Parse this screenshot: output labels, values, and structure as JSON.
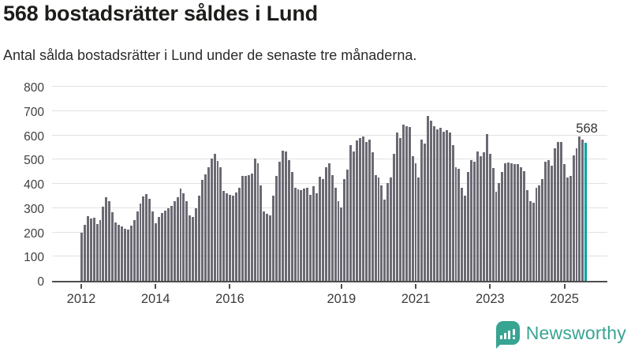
{
  "header": {
    "title": "568 bostadsrätter såldes i Lund",
    "subtitle": "Antal sålda bostadsrätter i Lund under de senaste tre månaderna."
  },
  "chart_data": {
    "type": "bar",
    "title": "568 bostadsrätter såldes i Lund",
    "xlabel": "",
    "ylabel": "",
    "ylim": [
      0,
      800
    ],
    "grid": true,
    "start_year": 2012,
    "x_start": "2012-01",
    "x_end": "2025-08",
    "yticks": [
      0,
      100,
      200,
      300,
      400,
      500,
      600,
      700,
      800
    ],
    "xticks": [
      2012,
      2014,
      2016,
      2019,
      2021,
      2023,
      2025
    ],
    "bar_color": "#6b6a73",
    "values": [
      200,
      232,
      266,
      256,
      261,
      235,
      251,
      306,
      344,
      330,
      282,
      242,
      230,
      223,
      214,
      212,
      227,
      251,
      287,
      318,
      347,
      357,
      339,
      287,
      236,
      263,
      279,
      290,
      300,
      310,
      330,
      345,
      380,
      360,
      330,
      270,
      265,
      300,
      350,
      415,
      440,
      470,
      505,
      525,
      495,
      470,
      370,
      360,
      355,
      351,
      364,
      385,
      432,
      432,
      437,
      442,
      504,
      486,
      394,
      286,
      277,
      270,
      351,
      432,
      491,
      538,
      534,
      497,
      448,
      383,
      378,
      373,
      380,
      385,
      356,
      390,
      362,
      430,
      420,
      470,
      486,
      437,
      383,
      329,
      302,
      421,
      459,
      561,
      534,
      578,
      588,
      594,
      572,
      583,
      529,
      437,
      427,
      394,
      335,
      405,
      427,
      524,
      610,
      589,
      645,
      637,
      634,
      513,
      486,
      426,
      583,
      567,
      681,
      659,
      637,
      626,
      632,
      616,
      621,
      610,
      561,
      470,
      461,
      383,
      351,
      448,
      497,
      491,
      534,
      513,
      529,
      605,
      524,
      464,
      367,
      405,
      448,
      486,
      488,
      486,
      480,
      482,
      470,
      453,
      373,
      329,
      321,
      383,
      394,
      421,
      491,
      497,
      475,
      547,
      572,
      572,
      480,
      427,
      432,
      518,
      545,
      594,
      583,
      568
    ],
    "highlight": {
      "index": 163,
      "value": 568,
      "label": "568",
      "color": "#00a3a1"
    }
  },
  "footer": {
    "brand": "Newsworthy",
    "brand_color": "#38a492"
  }
}
